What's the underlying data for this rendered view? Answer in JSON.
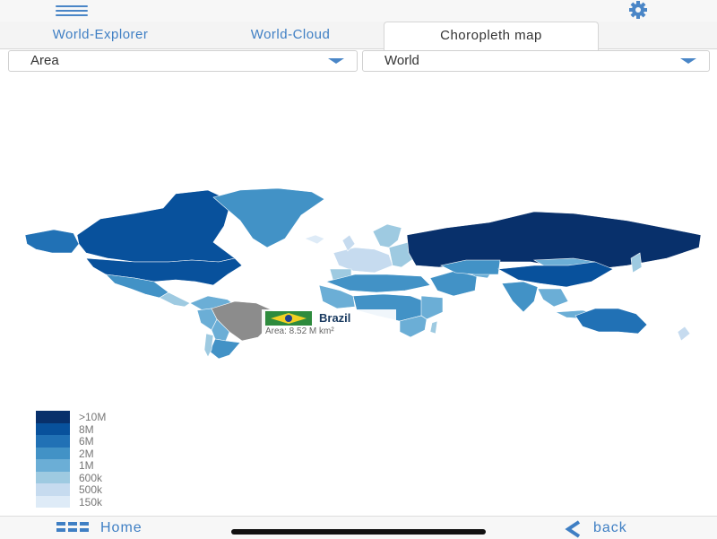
{
  "topbar": {
    "menu_icon": "hamburger-icon",
    "settings_icon": "gear-icon"
  },
  "tabs": [
    {
      "label": "World-Explorer",
      "active": false
    },
    {
      "label": "World-Cloud",
      "active": false
    },
    {
      "label": "Choropleth map",
      "active": true
    }
  ],
  "filters": {
    "metric": "Area",
    "region": "World"
  },
  "map": {
    "highlight": {
      "name": "Brazil",
      "area_label": "Area: 8.52 M km²"
    },
    "colors": {
      "c10M": "#08306b",
      "c8M": "#08519c",
      "c6M": "#2171b5",
      "c2M": "#4292c6",
      "c1M": "#6baed6",
      "c600k": "#9ecae1",
      "c500k": "#c6dbef",
      "c150k": "#deebf7",
      "selected": "#8c8c8c"
    }
  },
  "legend": {
    "items": [
      {
        "label": ">10M",
        "color": "#08306b"
      },
      {
        "label": "8M",
        "color": "#08519c"
      },
      {
        "label": "6M",
        "color": "#2171b5"
      },
      {
        "label": "2M",
        "color": "#4292c6"
      },
      {
        "label": "1M",
        "color": "#6baed6"
      },
      {
        "label": "600k",
        "color": "#9ecae1"
      },
      {
        "label": "500k",
        "color": "#c6dbef"
      },
      {
        "label": "150k",
        "color": "#deebf7"
      }
    ]
  },
  "bottom": {
    "home_label": "Home",
    "back_label": "back"
  }
}
